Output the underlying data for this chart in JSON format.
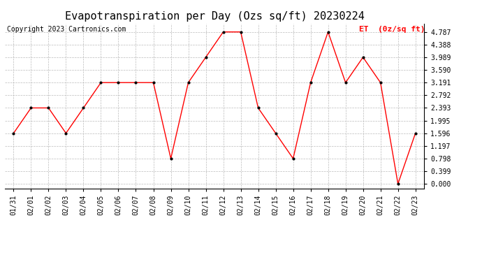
{
  "title": "Evapotranspiration per Day (Ozs sq/ft) 20230224",
  "copyright": "Copyright 2023 Cartronics.com",
  "legend_label": "ET  (0z/sq ft)",
  "x_labels": [
    "01/31",
    "02/01",
    "02/02",
    "02/03",
    "02/04",
    "02/05",
    "02/06",
    "02/07",
    "02/08",
    "02/09",
    "02/10",
    "02/11",
    "02/12",
    "02/13",
    "02/14",
    "02/15",
    "02/16",
    "02/17",
    "02/18",
    "02/19",
    "02/20",
    "02/21",
    "02/22",
    "02/23"
  ],
  "y_values": [
    1.596,
    2.393,
    2.393,
    1.596,
    2.393,
    3.191,
    3.191,
    3.191,
    3.191,
    0.798,
    3.191,
    3.989,
    4.787,
    4.787,
    2.393,
    1.596,
    0.798,
    3.191,
    4.787,
    3.191,
    3.989,
    3.191,
    0.0,
    1.596
  ],
  "y_ticks": [
    0.0,
    0.399,
    0.798,
    1.197,
    1.596,
    1.995,
    2.393,
    2.792,
    3.191,
    3.59,
    3.989,
    4.388,
    4.787
  ],
  "ylim_min": -0.15,
  "ylim_max": 5.05,
  "line_color": "red",
  "marker_color": "black",
  "grid_color": "#bbbbbb",
  "bg_color": "white",
  "title_fontsize": 11,
  "copyright_fontsize": 7,
  "tick_fontsize": 7,
  "legend_color": "red",
  "legend_fontsize": 8
}
